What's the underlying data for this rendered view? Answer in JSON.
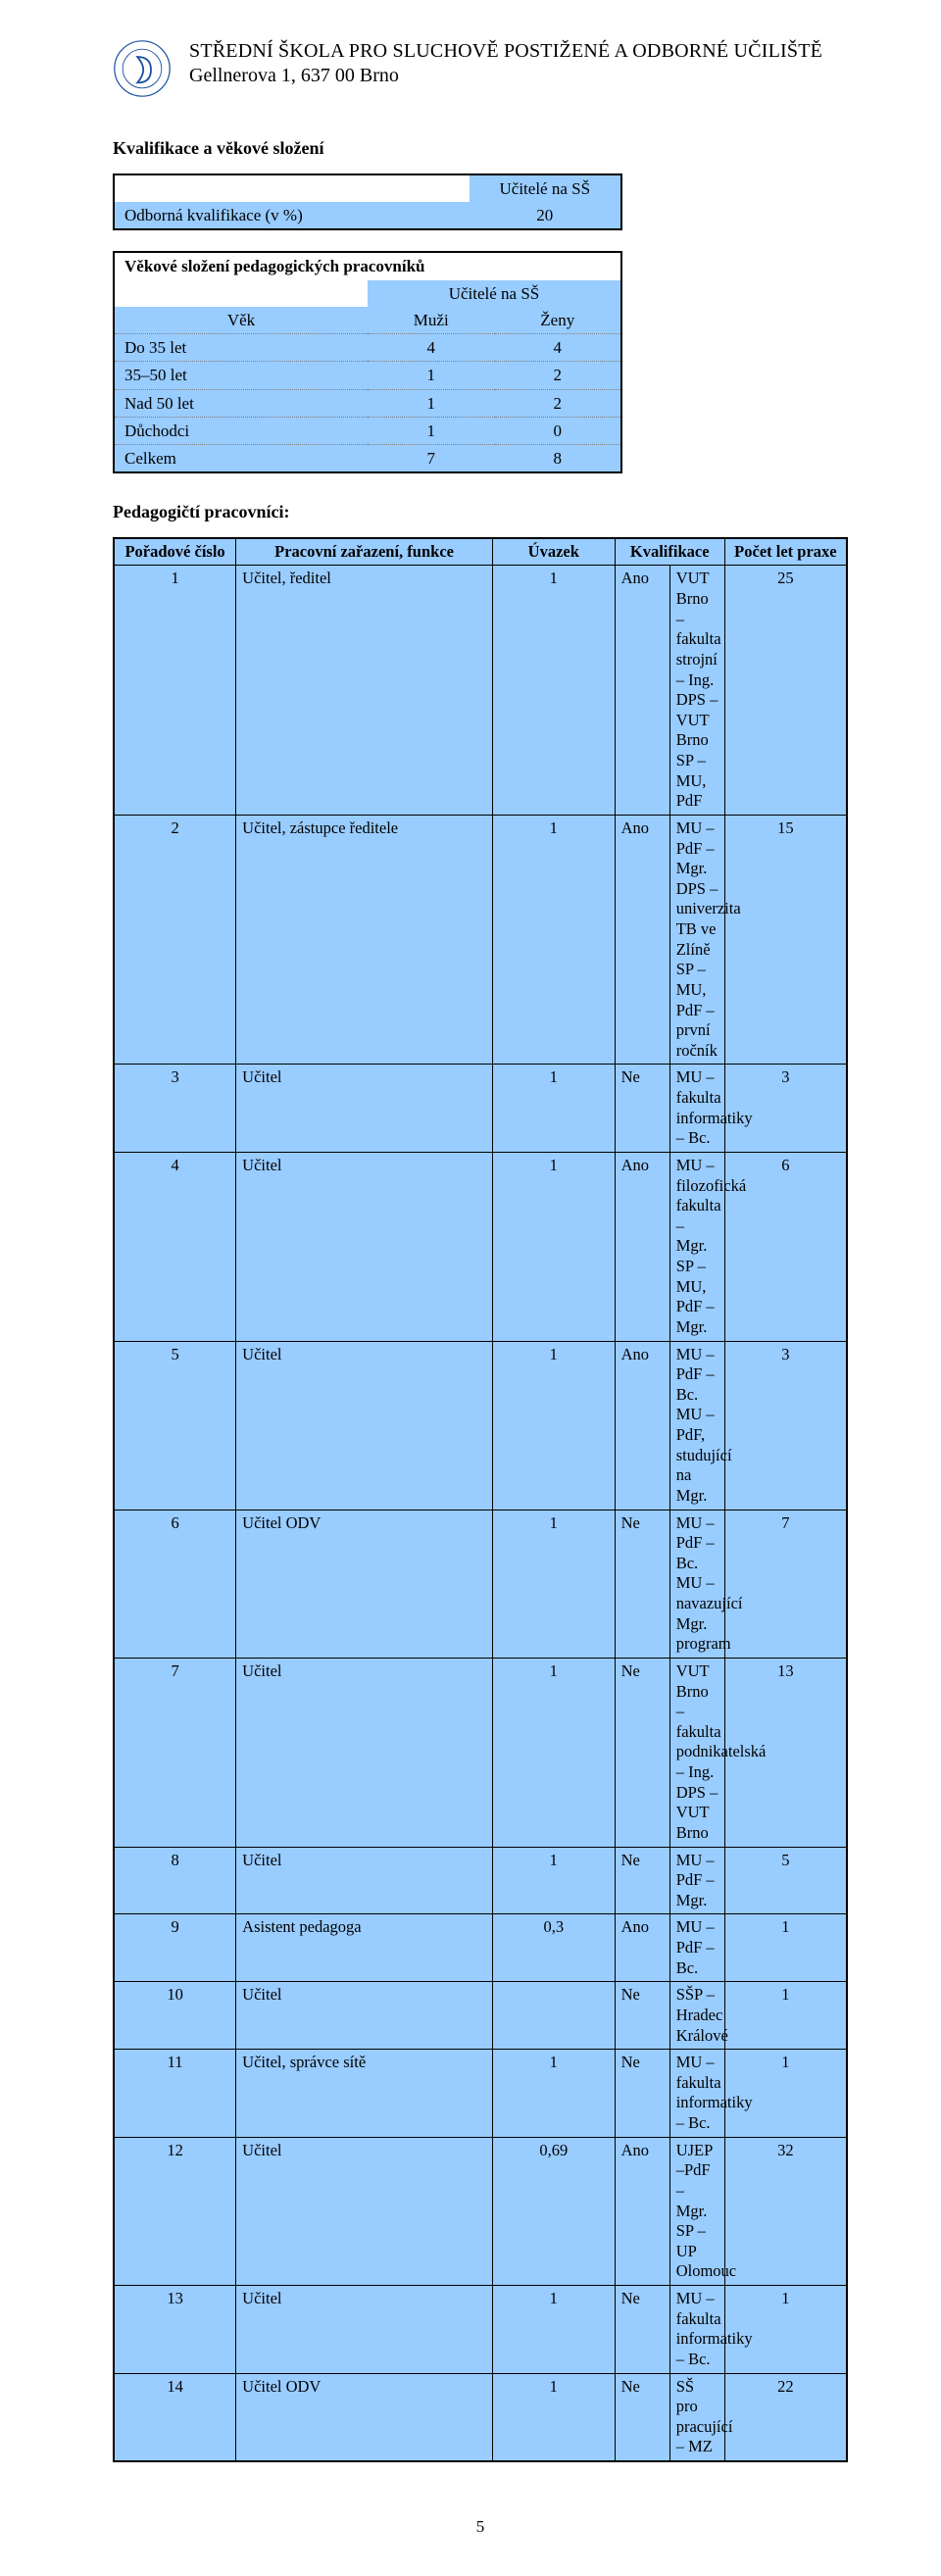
{
  "header": {
    "line1": "STŘEDNÍ ŠKOLA PRO SLUCHOVĚ POSTIŽENÉ A ODBORNÉ UČILIŠTĚ",
    "line2": "Gellnerova 1, 637 00 Brno"
  },
  "colors": {
    "table_bg": "#99ccff",
    "border": "#000000",
    "page_bg": "#ffffff",
    "logo_stroke": "#1a4fa0"
  },
  "section_titles": {
    "qual_age": "Kvalifikace a věkové složení",
    "age_composition": "Věkové složení pedagogických pracovníků",
    "staff": "Pedagogičtí pracovníci:"
  },
  "qual_table": {
    "header_right": "Učitelé na SŠ",
    "row_label": "Odborná kvalifikace (v %)",
    "row_value": "20"
  },
  "age_table": {
    "top_header": "Učitelé na SŠ",
    "col0": "Věk",
    "col1": "Muži",
    "col2": "Ženy",
    "rows": [
      {
        "label": "Do 35 let",
        "m": "4",
        "f": "4"
      },
      {
        "label": "35–50 let",
        "m": "1",
        "f": "2"
      },
      {
        "label": "Nad 50 let",
        "m": "1",
        "f": "2"
      },
      {
        "label": "Důchodci",
        "m": "1",
        "f": "0"
      },
      {
        "label": "Celkem",
        "m": "7",
        "f": "8"
      }
    ]
  },
  "staff_table": {
    "headers": {
      "c0": "Pořadové číslo",
      "c1": "Pracovní zařazení, funkce",
      "c2": "Úvazek",
      "c34": "Kvalifikace",
      "c5": "Počet let praxe"
    },
    "rows": [
      {
        "n": "1",
        "role": "Učitel, ředitel",
        "load": "1",
        "sp": "Ano",
        "qual": "VUT Brno – fakulta strojní – Ing.\nDPS – VUT Brno\nSP – MU, PdF",
        "years": "25"
      },
      {
        "n": "2",
        "role": "Učitel, zástupce ředitele",
        "load": "1",
        "sp": "Ano",
        "qual": "MU – PdF – Mgr.\nDPS – univerzita TB ve Zlíně\nSP – MU, PdF – první ročník",
        "years": "15"
      },
      {
        "n": "3",
        "role": "Učitel",
        "load": "1",
        "sp": "Ne",
        "qual": "MU – fakulta informatiky – Bc.",
        "years": "3"
      },
      {
        "n": "4",
        "role": "Učitel",
        "load": "1",
        "sp": "Ano",
        "qual": "MU – filozofická fakulta – Mgr.\nSP – MU, PdF – Mgr.",
        "years": "6"
      },
      {
        "n": "5",
        "role": "Učitel",
        "load": "1",
        "sp": "Ano",
        "qual": "MU – PdF – Bc.\nMU – PdF, studující na Mgr.",
        "years": "3"
      },
      {
        "n": "6",
        "role": "Učitel ODV",
        "load": "1",
        "sp": "Ne",
        "qual": "MU – PdF – Bc.\nMU – navazující Mgr. program",
        "years": "7"
      },
      {
        "n": "7",
        "role": "Učitel",
        "load": "1",
        "sp": "Ne",
        "qual": "VUT Brno – fakulta podnikatelská – Ing.\nDPS – VUT Brno",
        "years": "13"
      },
      {
        "n": "8",
        "role": "Učitel",
        "load": "1",
        "sp": "Ne",
        "qual": "MU – PdF – Mgr.",
        "years": "5"
      },
      {
        "n": "9",
        "role": "Asistent pedagoga",
        "load": "0,3",
        "sp": "Ano",
        "qual": "MU – PdF – Bc.",
        "years": "1"
      },
      {
        "n": "10",
        "role": "Učitel",
        "load": "",
        "sp": "Ne",
        "qual": "SŠP – Hradec Králové",
        "years": "1"
      },
      {
        "n": "11",
        "role": "Učitel, správce sítě",
        "load": "1",
        "sp": "Ne",
        "qual": "MU – fakulta informatiky – Bc.",
        "years": "1"
      },
      {
        "n": "12",
        "role": "Učitel",
        "load": "0,69",
        "sp": "Ano",
        "qual": "UJEP –PdF –   Mgr.\nSP – UP Olomouc",
        "years": "32"
      },
      {
        "n": "13",
        "role": "Učitel",
        "load": "1",
        "sp": "Ne",
        "qual": "MU – fakulta informatiky – Bc.",
        "years": "1"
      },
      {
        "n": "14",
        "role": "Učitel ODV",
        "load": "1",
        "sp": "Ne",
        "qual": "SŠ pro pracující – MZ",
        "years": "22"
      }
    ]
  },
  "page_number": "5"
}
